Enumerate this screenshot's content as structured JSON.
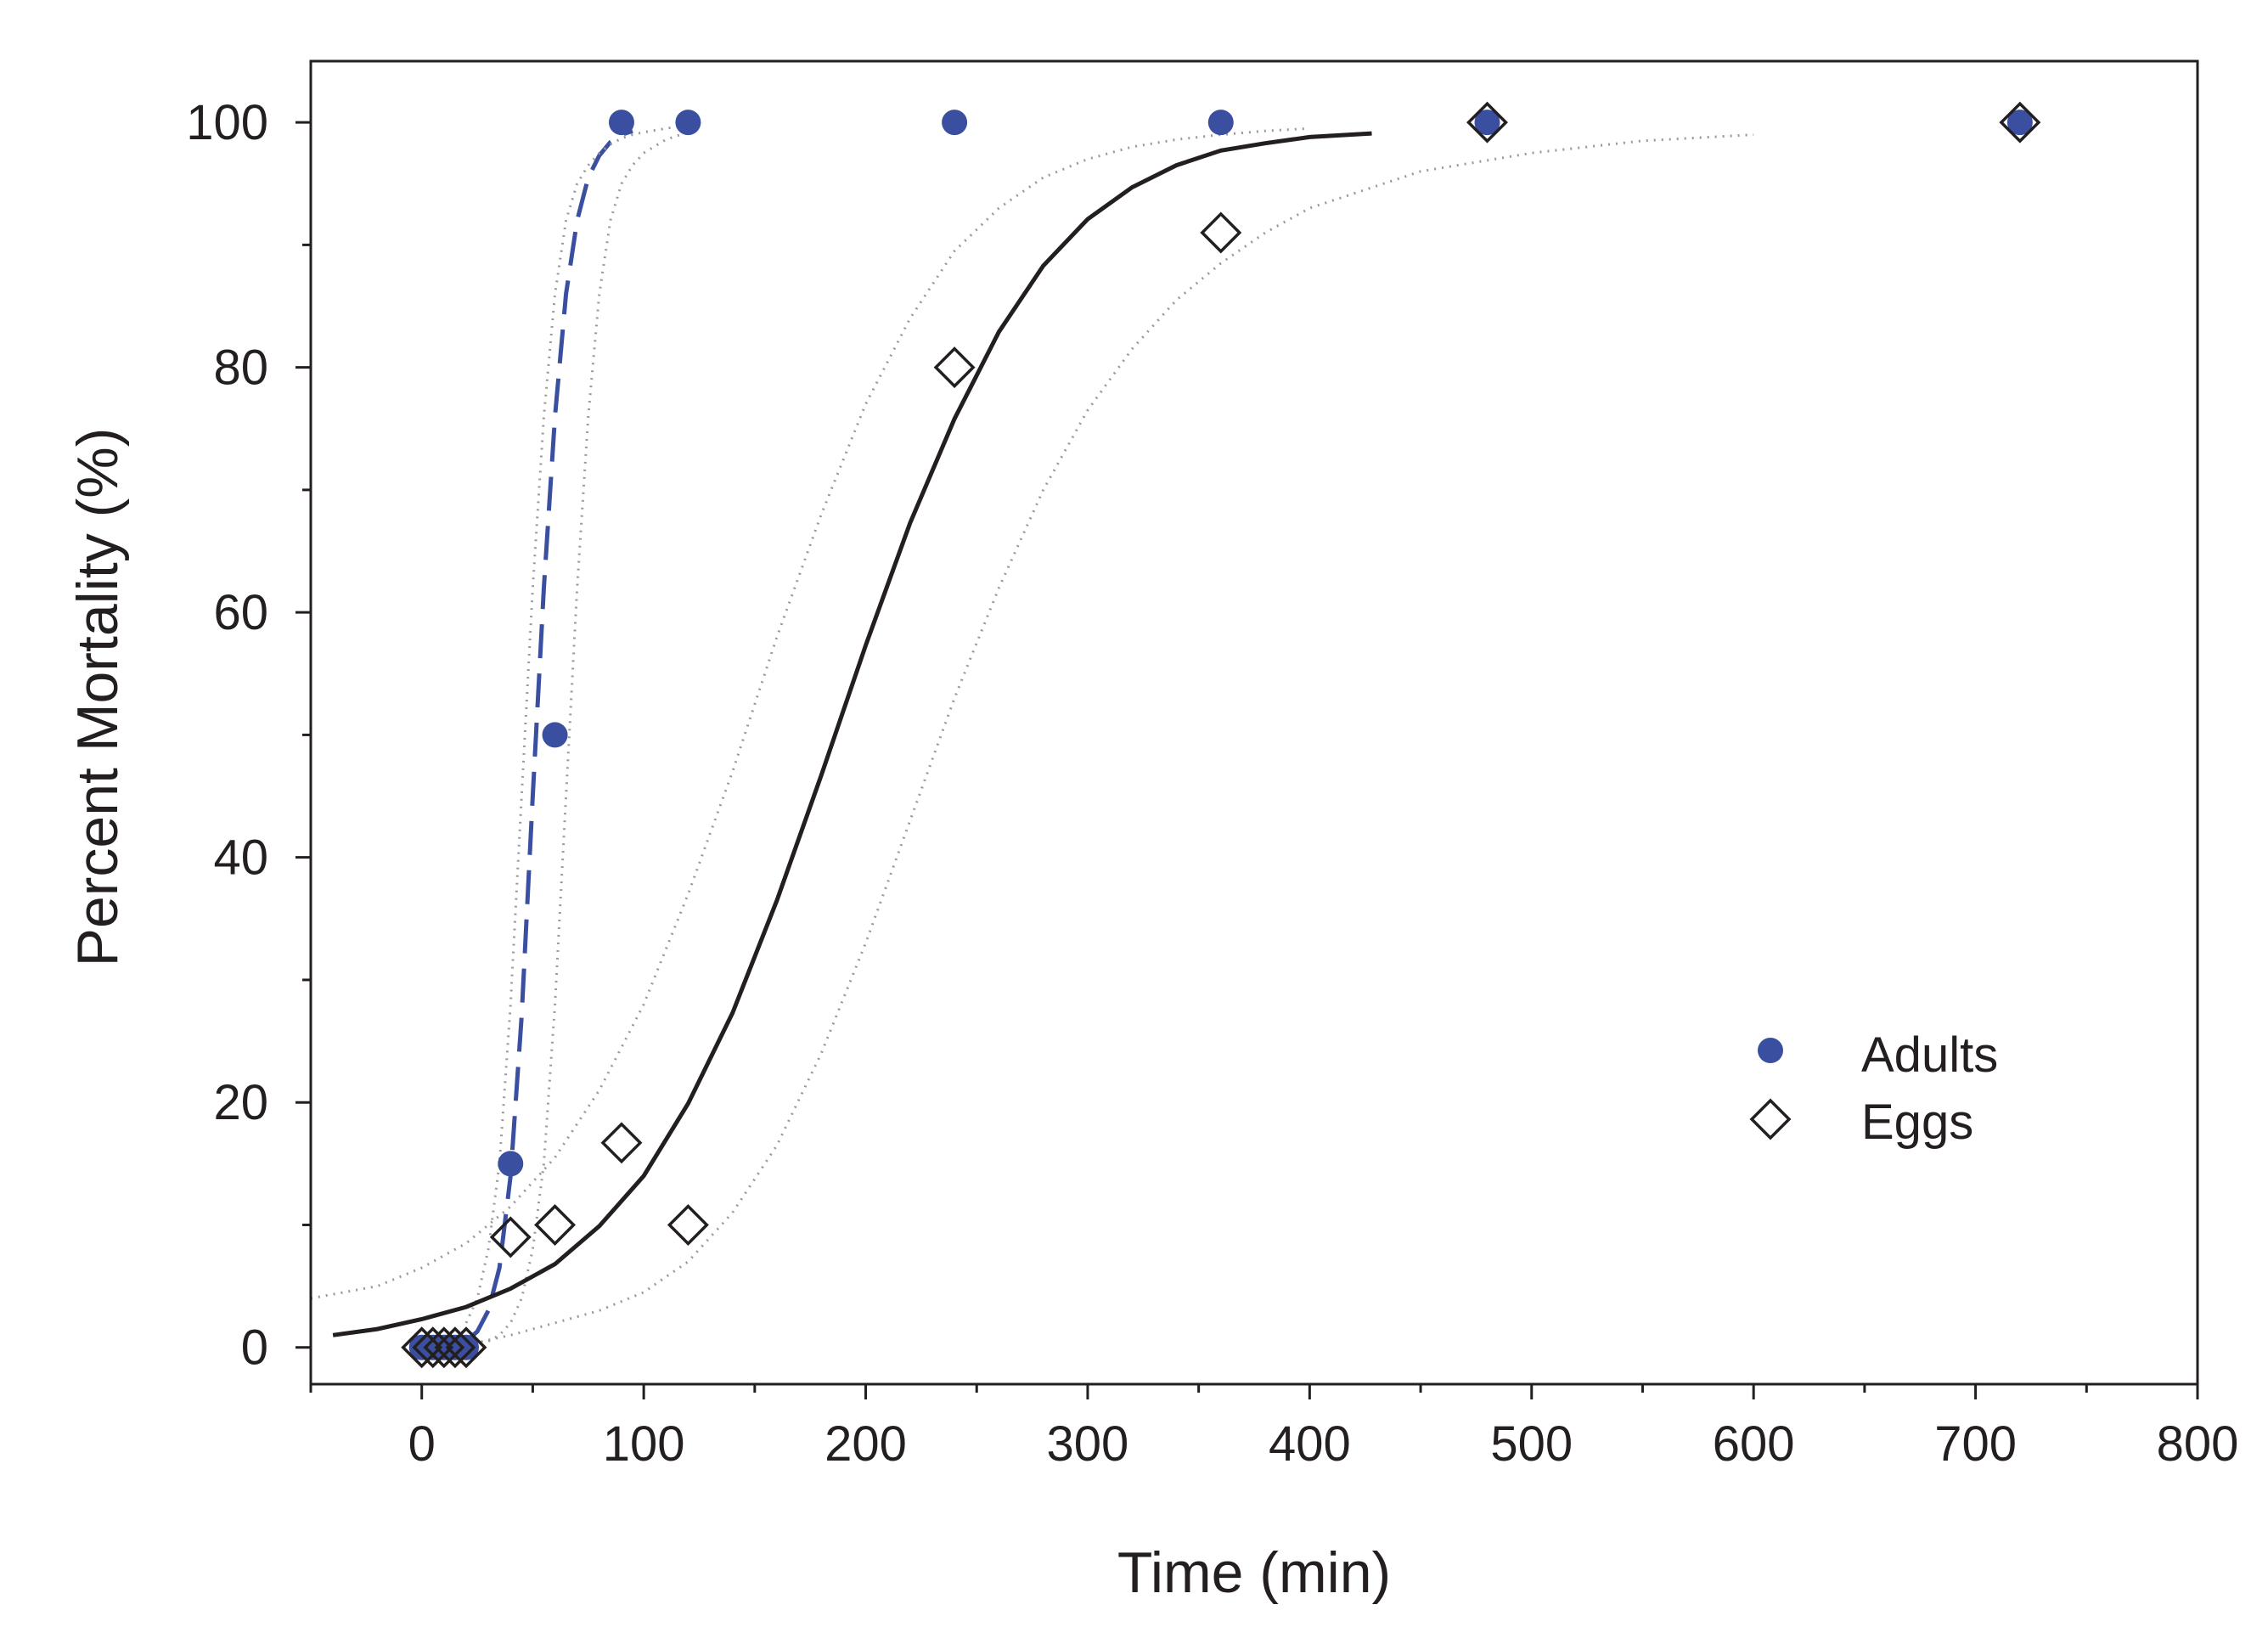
{
  "chart_data": {
    "type": "scatter",
    "title": "",
    "xlabel": "Time (min)",
    "ylabel": "Percent  Mortality (%)",
    "xlim": [
      -50,
      800
    ],
    "ylim": [
      -3,
      105
    ],
    "x_ticks": [
      0,
      100,
      200,
      300,
      400,
      500,
      600,
      700,
      800
    ],
    "x_tick_labels": [
      "0",
      "100",
      "200",
      "300",
      "400",
      "500",
      "600",
      "700",
      "800"
    ],
    "y_ticks": [
      0,
      20,
      40,
      60,
      80,
      100
    ],
    "y_tick_labels": [
      "0",
      "20",
      "40",
      "60",
      "80",
      "100"
    ],
    "grid": false,
    "legend_position": "bottom-right",
    "colors": {
      "adults": "#3a4fa0",
      "eggs": "#231f20",
      "ci": "#9a9a9a",
      "frame": "#231f20"
    },
    "series": [
      {
        "name": "Adults",
        "marker": "filled-circle",
        "x": [
          0,
          5,
          10,
          15,
          20,
          40,
          60,
          90,
          120,
          240,
          360,
          480,
          720
        ],
        "y": [
          0,
          0,
          0,
          0,
          0,
          15,
          50,
          100,
          100,
          100,
          100,
          100,
          100
        ]
      },
      {
        "name": "Eggs",
        "marker": "open-diamond",
        "x": [
          0,
          5,
          10,
          15,
          20,
          40,
          60,
          90,
          120,
          240,
          360,
          480,
          720
        ],
        "y": [
          0,
          0,
          0,
          0,
          0,
          9,
          10,
          16.7,
          10,
          80,
          91,
          100,
          100
        ]
      }
    ],
    "fits": [
      {
        "name": "Adults fit",
        "style": "dashed",
        "x": [
          0,
          10,
          20,
          25,
          30,
          35,
          40,
          45,
          50,
          55,
          60,
          65,
          70,
          75,
          80,
          85,
          90,
          95
        ],
        "y": [
          0,
          0.1,
          0.5,
          1.3,
          3,
          6.5,
          14,
          27,
          45,
          62,
          76,
          86,
          92,
          95.5,
          97.3,
          98.4,
          99,
          99.3
        ]
      },
      {
        "name": "Adults 95% CI upper",
        "style": "dotted",
        "x": [
          20,
          25,
          30,
          35,
          40,
          45,
          50,
          55,
          60,
          65,
          70,
          75,
          80,
          85,
          90,
          95,
          100,
          110,
          120
        ],
        "y": [
          2,
          4,
          8,
          15,
          28,
          45,
          62,
          76,
          86,
          92,
          95,
          96.5,
          97.5,
          98.2,
          98.7,
          99,
          99.2,
          99.5,
          99.8
        ]
      },
      {
        "name": "Adults 95% CI lower",
        "style": "dotted",
        "x": [
          30,
          35,
          40,
          45,
          50,
          55,
          60,
          65,
          70,
          75,
          80,
          85,
          90,
          95,
          100,
          110,
          120
        ],
        "y": [
          0.5,
          1,
          2,
          4,
          8,
          15,
          28,
          45,
          62,
          76,
          86,
          92,
          95,
          96.5,
          97.5,
          98.6,
          99.2
        ]
      },
      {
        "name": "Eggs fit",
        "style": "solid",
        "x": [
          -40,
          -20,
          0,
          20,
          40,
          60,
          80,
          100,
          120,
          140,
          160,
          180,
          200,
          220,
          240,
          260,
          280,
          300,
          320,
          340,
          360,
          380,
          400,
          428
        ],
        "y": [
          1,
          1.5,
          2.3,
          3.3,
          4.8,
          6.8,
          9.9,
          14,
          19.9,
          27.3,
          36.5,
          46.7,
          57.3,
          67.3,
          75.8,
          82.9,
          88.3,
          92.1,
          94.7,
          96.5,
          97.7,
          98.3,
          98.8,
          99.1
        ]
      },
      {
        "name": "Eggs 95% CI upper",
        "style": "dotted",
        "x": [
          -50,
          -20,
          0,
          20,
          40,
          60,
          80,
          100,
          120,
          140,
          160,
          180,
          200,
          220,
          240,
          260,
          280,
          300,
          320,
          340,
          360,
          380,
          400
        ],
        "y": [
          4,
          5,
          6.5,
          8.5,
          11.5,
          15.5,
          21,
          28,
          37,
          47,
          58,
          68,
          77,
          84,
          89.5,
          93,
          95.5,
          97,
          98,
          98.6,
          99,
          99.3,
          99.5
        ]
      },
      {
        "name": "Eggs 95% CI lower",
        "style": "dotted",
        "x": [
          20,
          40,
          60,
          80,
          100,
          120,
          140,
          160,
          180,
          200,
          220,
          240,
          260,
          280,
          300,
          320,
          340,
          360,
          380,
          400,
          450,
          500,
          550,
          600
        ],
        "y": [
          0.2,
          1,
          2,
          3,
          4.5,
          7,
          11,
          16.5,
          24,
          33,
          43,
          53,
          62,
          70,
          76.5,
          81.5,
          85.5,
          88.5,
          91,
          93,
          96,
          97.5,
          98.5,
          99
        ]
      }
    ]
  }
}
